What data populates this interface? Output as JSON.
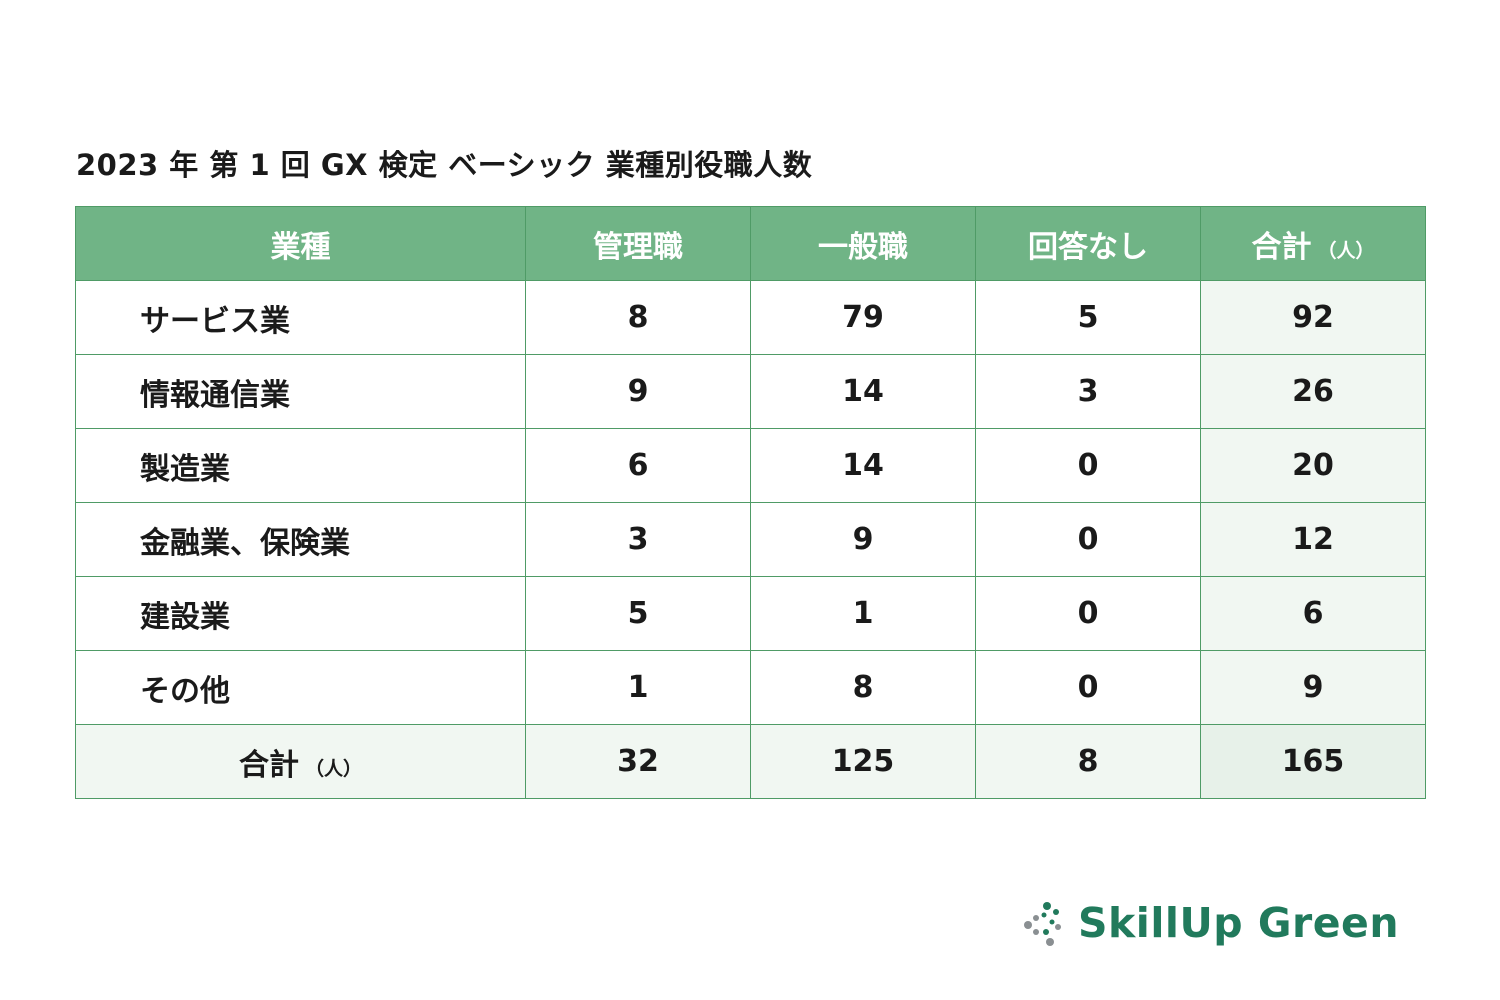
{
  "title": "2023 年 第 1 回 GX 検定 ベーシック 業種別役職人数",
  "table": {
    "headers": {
      "industry": "業種",
      "management": "管理職",
      "general": "一般職",
      "no_answer": "回答なし",
      "total": "合計",
      "total_unit": "（人）"
    },
    "rows": [
      {
        "industry": "サービス業",
        "management": "8",
        "general": "79",
        "no_answer": "5",
        "total": "92"
      },
      {
        "industry": "情報通信業",
        "management": "9",
        "general": "14",
        "no_answer": "3",
        "total": "26"
      },
      {
        "industry": "製造業",
        "management": "6",
        "general": "14",
        "no_answer": "0",
        "total": "20"
      },
      {
        "industry": "金融業、保険業",
        "management": "3",
        "general": "9",
        "no_answer": "0",
        "total": "12"
      },
      {
        "industry": "建設業",
        "management": "5",
        "general": "1",
        "no_answer": "0",
        "total": "6"
      },
      {
        "industry": "その他",
        "management": "1",
        "general": "8",
        "no_answer": "0",
        "total": "9"
      }
    ],
    "total_row": {
      "label": "合計",
      "unit": "（人）",
      "management": "32",
      "general": "125",
      "no_answer": "8",
      "total": "165"
    }
  },
  "logo": {
    "text": "SkillUp Green",
    "color": "#217a5c"
  },
  "colors": {
    "header_bg": "#70b486",
    "border": "#4f9b66",
    "total_bg": "#f1f7f2"
  }
}
